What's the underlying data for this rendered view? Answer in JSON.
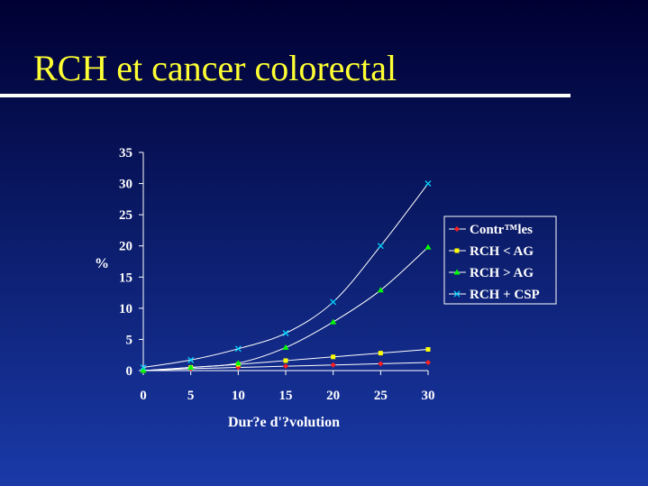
{
  "slide": {
    "title": "RCH et cancer colorectal"
  },
  "chart_data": {
    "type": "line",
    "title": "",
    "xlabel": "Dur?e d'?volution",
    "ylabel": "%",
    "x": [
      0,
      5,
      10,
      15,
      20,
      25,
      30
    ],
    "xlim": [
      0,
      30
    ],
    "ylim": [
      0,
      35
    ],
    "xticks": [
      "0",
      "5",
      "10",
      "15",
      "20",
      "25",
      "30"
    ],
    "yticks": [
      "0",
      "5",
      "10",
      "15",
      "20",
      "25",
      "30",
      "35"
    ],
    "grid": false,
    "legend_position": "right",
    "series": [
      {
        "name": "Contrôles",
        "display_name": "Contr™les",
        "color": "#ff2020",
        "marker": "diamond",
        "values": [
          0,
          0.3,
          0.5,
          0.7,
          0.9,
          1.1,
          1.3
        ]
      },
      {
        "name": "RCH < AG",
        "color": "#ffff00",
        "marker": "square",
        "values": [
          0,
          0.5,
          1.0,
          1.6,
          2.2,
          2.8,
          3.4
        ]
      },
      {
        "name": "RCH > AG",
        "color": "#00ff00",
        "marker": "triangle",
        "values": [
          0,
          0.5,
          1.2,
          3.7,
          7.8,
          12.9,
          19.8
        ]
      },
      {
        "name": "RCH + CSP",
        "color": "#00d8ff",
        "marker": "x",
        "values": [
          0.5,
          1.7,
          3.5,
          6.0,
          11.0,
          20.0,
          30.0
        ]
      }
    ]
  }
}
